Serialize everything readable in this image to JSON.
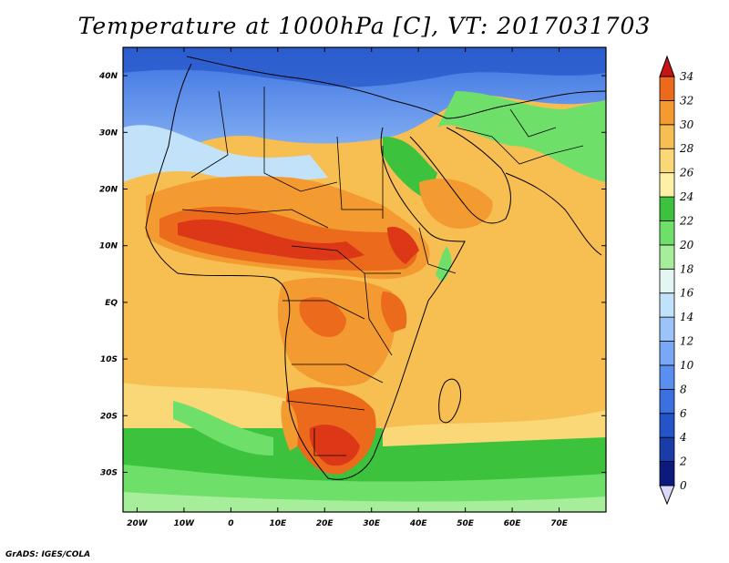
{
  "title": "Temperature at 1000hPa [C], VT: 2017031703",
  "credit": "GrADS: IGES/COLA",
  "map": {
    "projection": "lat-lon",
    "lon_range": [
      -23,
      80
    ],
    "lat_range": [
      -37,
      45
    ],
    "lon_ticks": [
      "20W",
      "10W",
      "0",
      "10E",
      "20E",
      "30E",
      "40E",
      "50E",
      "60E",
      "70E"
    ],
    "lon_tick_values": [
      -20,
      -10,
      0,
      10,
      20,
      30,
      40,
      50,
      60,
      70
    ],
    "lat_ticks": [
      "40N",
      "30N",
      "20N",
      "10N",
      "EQ",
      "10S",
      "20S",
      "30S"
    ],
    "lat_tick_values": [
      40,
      30,
      20,
      10,
      0,
      -10,
      -20,
      -30
    ]
  },
  "colorbar": {
    "labels": [
      "0",
      "2",
      "4",
      "6",
      "8",
      "10",
      "12",
      "14",
      "16",
      "18",
      "20",
      "22",
      "24",
      "26",
      "28",
      "30",
      "32",
      "34"
    ],
    "colors": [
      "#0b1a7c",
      "#1a3ca8",
      "#2454c8",
      "#3a70e0",
      "#5a8ef0",
      "#7aa8f4",
      "#9cc4f8",
      "#c2e2fa",
      "#e4f6f4",
      "#a6ee9a",
      "#6ee06a",
      "#3cc23c",
      "#fff0a8",
      "#fad878",
      "#f7be52",
      "#f39a30",
      "#ec6a1c",
      "#dc3818",
      "#c81414"
    ],
    "under_color": "#dcd8f8",
    "over_color": "#c81414"
  }
}
